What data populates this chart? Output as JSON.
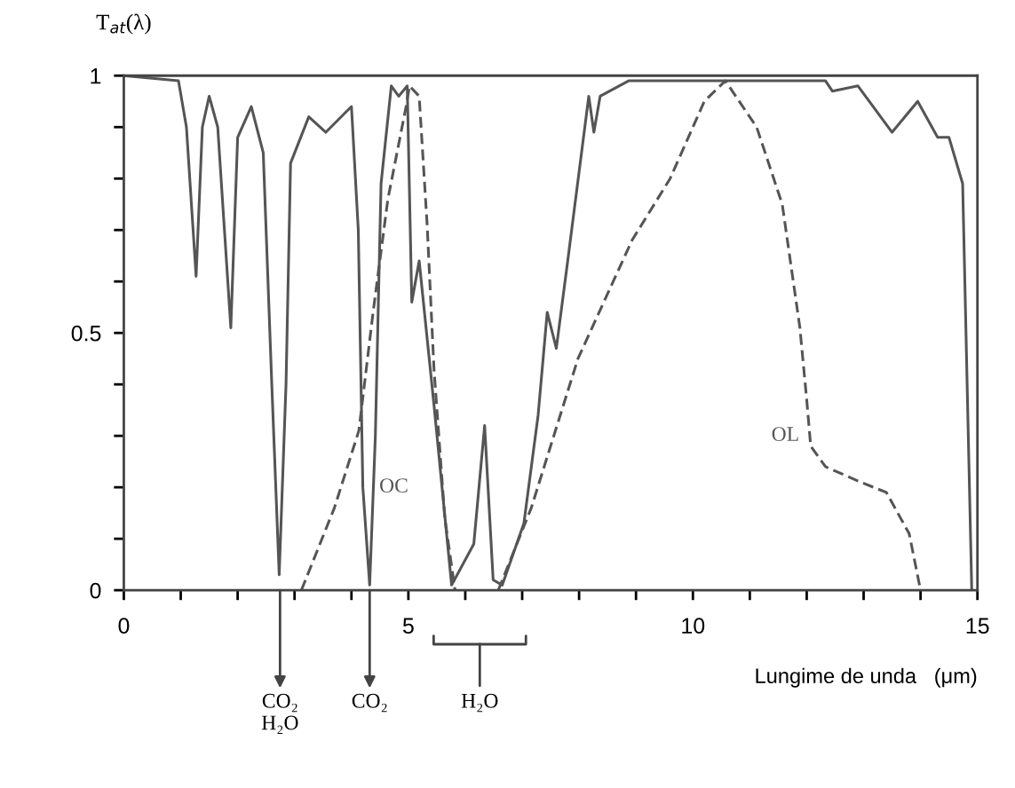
{
  "chart_data": {
    "type": "line",
    "ylabel": "T$_{at}$(λ)",
    "xlabel": "Lungime de unda   (μm)",
    "xlim": [
      0,
      15
    ],
    "ylim": [
      0,
      1
    ],
    "xticks": [
      0,
      {
        "value": 1,
        "label": null
      },
      {
        "value": 2,
        "label": null
      },
      {
        "value": 3,
        "label": null
      },
      {
        "value": 4,
        "label": null
      },
      5,
      {
        "value": 6,
        "label": null
      },
      {
        "value": 7,
        "label": null
      },
      {
        "value": 8,
        "label": null
      },
      {
        "value": 9,
        "label": null
      },
      10,
      {
        "value": 11,
        "label": null
      },
      {
        "value": 12,
        "label": null
      },
      {
        "value": 13,
        "label": null
      },
      {
        "value": 14,
        "label": null
      },
      15
    ],
    "yticks": [
      0,
      {
        "value": 0.1,
        "label": null
      },
      {
        "value": 0.2,
        "label": null
      },
      {
        "value": 0.3,
        "label": null
      },
      {
        "value": 0.4,
        "label": null
      },
      0.5,
      {
        "value": 0.6,
        "label": null
      },
      {
        "value": 0.7,
        "label": null
      },
      {
        "value": 0.8,
        "label": null
      },
      {
        "value": 0.9,
        "label": null
      },
      1
    ],
    "grid": false,
    "legend": false,
    "marker": "none",
    "series": [
      {
        "color": "#555555",
        "line_style": "solid",
        "x": [
          0,
          0.96,
          1.1,
          1.27,
          1.38,
          1.5,
          1.65,
          1.88,
          2.0,
          2.24,
          2.45,
          2.6,
          2.73,
          2.85,
          2.93,
          3.25,
          3.55,
          4.0,
          4.12,
          4.2,
          4.32,
          4.42,
          4.52,
          4.7,
          4.83,
          4.98,
          5.06,
          5.19,
          5.45,
          5.76,
          6.15,
          6.34,
          6.49,
          6.65,
          7.03,
          7.28,
          7.44,
          7.6,
          7.8,
          8.17,
          8.26,
          8.37,
          8.87,
          12.33,
          12.45,
          12.9,
          13.5,
          13.95,
          14.3,
          14.5,
          14.74,
          14.9
        ],
        "values": [
          1,
          0.99,
          0.9,
          0.61,
          0.9,
          0.96,
          0.9,
          0.51,
          0.88,
          0.94,
          0.85,
          0.4,
          0.03,
          0.4,
          0.83,
          0.92,
          0.89,
          0.94,
          0.7,
          0.2,
          0.01,
          0.3,
          0.79,
          0.98,
          0.96,
          0.98,
          0.56,
          0.64,
          0.36,
          0.01,
          0.09,
          0.32,
          0.02,
          0.01,
          0.13,
          0.34,
          0.54,
          0.47,
          0.64,
          0.96,
          0.89,
          0.96,
          0.99,
          0.99,
          0.97,
          0.98,
          0.89,
          0.95,
          0.88,
          0.88,
          0.79,
          0
        ]
      },
      {
        "name": "OC",
        "color": "#555555",
        "line_style": "dashed",
        "x": [
          3.12,
          3.7,
          4.13,
          4.38,
          4.64,
          4.96,
          5.02,
          5.19,
          5.33,
          5.45,
          5.64,
          5.82
        ],
        "values": [
          0,
          0.16,
          0.31,
          0.54,
          0.76,
          0.94,
          0.98,
          0.96,
          0.71,
          0.43,
          0.14,
          0
        ]
      },
      {
        "name": "OL",
        "color": "#555555",
        "line_style": "dashed",
        "x": [
          6.58,
          7.16,
          7.98,
          8.93,
          9.6,
          10.2,
          10.57,
          11.12,
          11.57,
          11.88,
          12.0,
          12.07,
          12.33,
          12.95,
          13.4,
          13.8,
          14.0
        ],
        "values": [
          0,
          0.16,
          0.45,
          0.68,
          0.8,
          0.95,
          0.99,
          0.9,
          0.75,
          0.51,
          0.37,
          0.28,
          0.24,
          0.21,
          0.19,
          0.11,
          0
        ]
      }
    ],
    "annotations": [
      "CO₂\nH₂O",
      "CO₂",
      "H₂O"
    ]
  }
}
